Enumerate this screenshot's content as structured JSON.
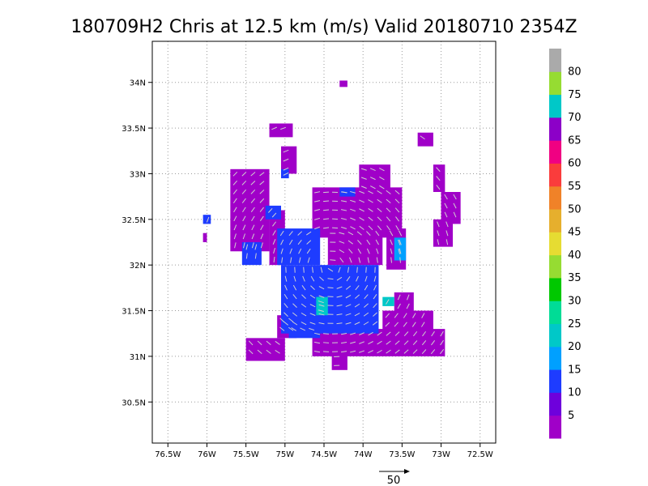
{
  "chart_data": {
    "type": "heatmap",
    "title": "180709H2 Chris at 12.5 km (m/s) Valid 20180710 2354Z",
    "x_range": [
      -76.7,
      -72.3
    ],
    "y_range": [
      30.05,
      34.45
    ],
    "x_ticks": [
      {
        "value": -76.5,
        "label": "76.5W"
      },
      {
        "value": -76.0,
        "label": "76W"
      },
      {
        "value": -75.5,
        "label": "75.5W"
      },
      {
        "value": -75.0,
        "label": "75W"
      },
      {
        "value": -74.5,
        "label": "74.5W"
      },
      {
        "value": -74.0,
        "label": "74W"
      },
      {
        "value": -73.5,
        "label": "73.5W"
      },
      {
        "value": -73.0,
        "label": "73W"
      },
      {
        "value": -72.5,
        "label": "72.5W"
      }
    ],
    "y_ticks": [
      {
        "value": 30.5,
        "label": "30.5N"
      },
      {
        "value": 31.0,
        "label": "31N"
      },
      {
        "value": 31.5,
        "label": "31.5N"
      },
      {
        "value": 32.0,
        "label": "32N"
      },
      {
        "value": 32.5,
        "label": "32.5N"
      },
      {
        "value": 33.0,
        "label": "33N"
      },
      {
        "value": 33.5,
        "label": "33.5N"
      },
      {
        "value": 34.0,
        "label": "34N"
      }
    ],
    "grid": true,
    "colorbar": {
      "levels": [
        {
          "upper": 5,
          "color": "#a000c8"
        },
        {
          "upper": 10,
          "color": "#6e00dc"
        },
        {
          "upper": 15,
          "color": "#1e3cff"
        },
        {
          "upper": 20,
          "color": "#00a0ff"
        },
        {
          "upper": 25,
          "color": "#00c8c8"
        },
        {
          "upper": 30,
          "color": "#00dc96"
        },
        {
          "upper": 35,
          "color": "#00c800"
        },
        {
          "upper": 40,
          "color": "#96dc32"
        },
        {
          "upper": 45,
          "color": "#e6dc32"
        },
        {
          "upper": 50,
          "color": "#e6af2d"
        },
        {
          "upper": 55,
          "color": "#f08228"
        },
        {
          "upper": 60,
          "color": "#fa3c3c"
        },
        {
          "upper": 65,
          "color": "#f00082"
        },
        {
          "upper": 70,
          "color": "#8c00c8"
        },
        {
          "upper": 75,
          "color": "#00c8c8"
        },
        {
          "upper": 80,
          "color": "#96dc32"
        },
        {
          "upper": null,
          "color": "#aaaaaa"
        }
      ],
      "labels": [
        "5",
        "10",
        "15",
        "20",
        "25",
        "30",
        "35",
        "40",
        "45",
        "50",
        "55",
        "60",
        "65",
        "70",
        "75",
        "80"
      ]
    },
    "wind_speed_colors": {
      "level_5_10": "#a000c8",
      "level_10_15": "#6e00dc",
      "level_15_20": "#1e3cff",
      "level_20_25": "#00a0ff",
      "level_25_30": "#00c8c8"
    },
    "speed_regions": [
      {
        "level": "level_5_10",
        "lon": [
          -75.7,
          -75.2
        ],
        "lat": [
          32.15,
          33.05
        ]
      },
      {
        "level": "level_5_10",
        "lon": [
          -75.2,
          -75.0
        ],
        "lat": [
          32.0,
          32.6
        ]
      },
      {
        "level": "level_5_10",
        "lon": [
          -75.2,
          -74.9
        ],
        "lat": [
          33.4,
          33.55
        ]
      },
      {
        "level": "level_5_10",
        "lon": [
          -75.05,
          -74.85
        ],
        "lat": [
          33.0,
          33.3
        ]
      },
      {
        "level": "level_5_10",
        "lon": [
          -74.65,
          -73.5
        ],
        "lat": [
          32.3,
          32.85
        ]
      },
      {
        "level": "level_5_10",
        "lon": [
          -74.45,
          -73.75
        ],
        "lat": [
          32.0,
          32.4
        ]
      },
      {
        "level": "level_5_10",
        "lon": [
          -74.05,
          -73.65
        ],
        "lat": [
          32.8,
          33.1
        ]
      },
      {
        "level": "level_5_10",
        "lon": [
          -73.7,
          -73.45
        ],
        "lat": [
          31.95,
          32.4
        ]
      },
      {
        "level": "level_5_10",
        "lon": [
          -73.0,
          -72.75
        ],
        "lat": [
          32.45,
          32.8
        ]
      },
      {
        "level": "level_5_10",
        "lon": [
          -73.1,
          -72.85
        ],
        "lat": [
          32.2,
          32.5
        ]
      },
      {
        "level": "level_5_10",
        "lon": [
          -73.1,
          -72.95
        ],
        "lat": [
          32.8,
          33.1
        ]
      },
      {
        "level": "level_5_10",
        "lon": [
          -73.3,
          -73.1
        ],
        "lat": [
          33.3,
          33.45
        ]
      },
      {
        "level": "level_5_10",
        "lon": [
          -74.3,
          -74.2
        ],
        "lat": [
          33.95,
          34.02
        ]
      },
      {
        "level": "level_5_10",
        "lon": [
          -74.65,
          -72.95
        ],
        "lat": [
          31.0,
          31.3
        ]
      },
      {
        "level": "level_5_10",
        "lon": [
          -73.75,
          -73.1
        ],
        "lat": [
          31.25,
          31.5
        ]
      },
      {
        "level": "level_5_10",
        "lon": [
          -73.6,
          -73.35
        ],
        "lat": [
          31.45,
          31.7
        ]
      },
      {
        "level": "level_5_10",
        "lon": [
          -74.4,
          -74.2
        ],
        "lat": [
          30.85,
          31.05
        ]
      },
      {
        "level": "level_5_10",
        "lon": [
          -75.5,
          -75.0
        ],
        "lat": [
          30.95,
          31.2
        ]
      },
      {
        "level": "level_5_10",
        "lon": [
          -75.1,
          -74.85
        ],
        "lat": [
          31.2,
          31.45
        ]
      },
      {
        "level": "level_5_10",
        "lon": [
          -76.05,
          -76.0
        ],
        "lat": [
          32.25,
          32.35
        ]
      },
      {
        "level": "level_15_20",
        "lon": [
          -75.55,
          -75.3
        ],
        "lat": [
          32.0,
          32.25
        ]
      },
      {
        "level": "level_15_20",
        "lon": [
          -75.05,
          -73.8
        ],
        "lat": [
          31.25,
          32.0
        ]
      },
      {
        "level": "level_15_20",
        "lon": [
          -75.1,
          -74.55
        ],
        "lat": [
          32.0,
          32.4
        ]
      },
      {
        "level": "level_15_20",
        "lon": [
          -74.95,
          -74.55
        ],
        "lat": [
          31.2,
          31.35
        ]
      },
      {
        "level": "level_15_20",
        "lon": [
          -75.25,
          -75.05
        ],
        "lat": [
          32.5,
          32.65
        ]
      },
      {
        "level": "level_15_20",
        "lon": [
          -75.05,
          -74.95
        ],
        "lat": [
          32.95,
          33.05
        ]
      },
      {
        "level": "level_15_20",
        "lon": [
          -76.05,
          -75.95
        ],
        "lat": [
          32.45,
          32.55
        ]
      },
      {
        "level": "level_15_20",
        "lon": [
          -74.3,
          -74.1
        ],
        "lat": [
          32.75,
          32.85
        ]
      },
      {
        "level": "level_25_30",
        "lon": [
          -74.6,
          -74.45
        ],
        "lat": [
          31.45,
          31.65
        ]
      },
      {
        "level": "level_25_30",
        "lon": [
          -73.75,
          -73.6
        ],
        "lat": [
          31.55,
          31.65
        ]
      },
      {
        "level": "level_20_25",
        "lon": [
          -73.6,
          -73.45
        ],
        "lat": [
          32.05,
          32.3
        ]
      }
    ],
    "reference_vector": {
      "label": "50"
    }
  }
}
